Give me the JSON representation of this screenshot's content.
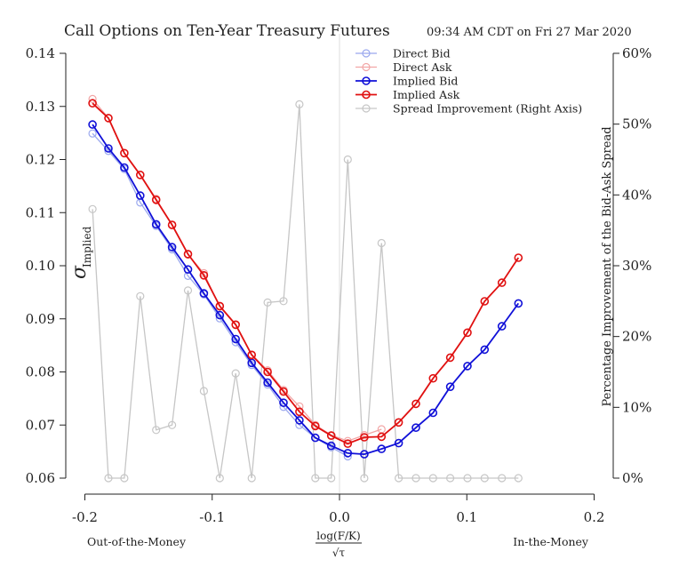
{
  "chart_data": {
    "type": "line",
    "title": "Call Options on Ten-Year Treasury Futures",
    "timestamp": "09:34 AM CDT on Fri 27 Mar 2020",
    "ylabel": {
      "symbol": "σ",
      "subscript": "Implied"
    },
    "y2label": "Percentage Improvement of the Bid-Ask Spread",
    "xlabel": {
      "numerator": "log(F/K)",
      "denominator": "√τ"
    },
    "xcaption_left": "Out-of-the-Money",
    "xcaption_right": "In-the-Money",
    "xlim": [
      -0.215,
      0.215
    ],
    "ylim": [
      0.06,
      0.14
    ],
    "y2lim": [
      0,
      60
    ],
    "xticks": [
      -0.2,
      -0.1,
      0.0,
      0.1,
      0.2
    ],
    "xtick_labels": [
      "-0.2",
      "-0.1",
      "0.0",
      "0.1",
      "0.2"
    ],
    "yticks": [
      0.06,
      0.07,
      0.08,
      0.09,
      0.1,
      0.11,
      0.12,
      0.13,
      0.14
    ],
    "ytick_labels": [
      "0.06",
      "0.07",
      "0.08",
      "0.09",
      "0.10",
      "0.11",
      "0.12",
      "0.13",
      "0.14"
    ],
    "y2ticks": [
      0,
      10,
      20,
      30,
      40,
      50,
      60
    ],
    "y2tick_labels": [
      "0%",
      "10%",
      "20%",
      "30%",
      "40%",
      "50%",
      "60%"
    ],
    "legend_position": "top-right",
    "grid": false,
    "vline_x": 0.0,
    "series": [
      {
        "name": "Direct Bid",
        "color": "#9aa8ee",
        "axis": "left",
        "x": [
          -0.194,
          -0.1815,
          -0.169,
          -0.1565,
          -0.144,
          -0.1315,
          -0.119,
          -0.1065,
          -0.094,
          -0.0815,
          -0.069,
          -0.0565,
          -0.044,
          -0.0315,
          -0.019,
          -0.0065,
          0.0065
        ],
        "y": [
          0.1249,
          0.1216,
          0.1182,
          0.1119,
          0.1075,
          0.1031,
          0.0981,
          0.0946,
          0.0901,
          0.0856,
          0.0813,
          0.0776,
          0.0734,
          0.07,
          0.0676,
          0.0658,
          0.0641
        ]
      },
      {
        "name": "Direct Ask",
        "color": "#f2a6a6",
        "axis": "left",
        "x": [
          -0.194,
          -0.1815,
          -0.169,
          -0.1565,
          -0.144,
          -0.1315,
          -0.119,
          -0.1065,
          -0.094,
          -0.0815,
          -0.069,
          -0.0565,
          -0.044,
          -0.0315,
          -0.019,
          -0.0065,
          0.0065,
          0.0195,
          0.033
        ],
        "y": [
          0.1314,
          0.1278,
          0.1212,
          0.1171,
          0.1126,
          0.1076,
          0.1021,
          0.0986,
          0.0923,
          0.0888,
          0.0833,
          0.0803,
          0.0766,
          0.0735,
          0.07,
          0.0681,
          0.067,
          0.0681,
          0.0692
        ]
      },
      {
        "name": "Implied Bid",
        "color": "#1010d8",
        "axis": "left",
        "x": [
          -0.194,
          -0.1815,
          -0.169,
          -0.1565,
          -0.144,
          -0.1315,
          -0.119,
          -0.1065,
          -0.094,
          -0.0815,
          -0.069,
          -0.0565,
          -0.044,
          -0.0315,
          -0.019,
          -0.0065,
          0.0065,
          0.0195,
          0.033,
          0.0465,
          0.06,
          0.0735,
          0.087,
          0.1005,
          0.114,
          0.1275,
          0.1405
        ],
        "y": [
          0.1266,
          0.1221,
          0.1185,
          0.1132,
          0.1078,
          0.1035,
          0.0993,
          0.0948,
          0.0907,
          0.0862,
          0.0817,
          0.078,
          0.0742,
          0.0709,
          0.0676,
          0.0661,
          0.0647,
          0.0645,
          0.0655,
          0.0666,
          0.0695,
          0.0723,
          0.0772,
          0.0811,
          0.0842,
          0.0886,
          0.0929
        ]
      },
      {
        "name": "Implied Ask",
        "color": "#e01010",
        "axis": "left",
        "x": [
          -0.194,
          -0.1815,
          -0.169,
          -0.1565,
          -0.144,
          -0.1315,
          -0.119,
          -0.1065,
          -0.094,
          -0.0815,
          -0.069,
          -0.0565,
          -0.044,
          -0.0315,
          -0.019,
          -0.0065,
          0.0065,
          0.0195,
          0.033,
          0.0465,
          0.06,
          0.0735,
          0.087,
          0.1005,
          0.114,
          0.1275,
          0.1405
        ],
        "y": [
          0.1306,
          0.1278,
          0.1212,
          0.1171,
          0.1124,
          0.1077,
          0.1022,
          0.0982,
          0.0924,
          0.0889,
          0.0832,
          0.08,
          0.0763,
          0.0725,
          0.0698,
          0.068,
          0.0665,
          0.0677,
          0.0678,
          0.0705,
          0.074,
          0.0788,
          0.0827,
          0.0874,
          0.0933,
          0.0968,
          0.1015
        ]
      },
      {
        "name": "Spread Improvement (Right Axis)",
        "color": "#c6c6c6",
        "axis": "right",
        "x": [
          -0.194,
          -0.1815,
          -0.169,
          -0.1565,
          -0.144,
          -0.1315,
          -0.119,
          -0.1065,
          -0.094,
          -0.0815,
          -0.069,
          -0.0565,
          -0.044,
          -0.0315,
          -0.019,
          -0.0065,
          0.0065,
          0.0195,
          0.033,
          0.0465,
          0.06,
          0.0735,
          0.087,
          0.1005,
          0.114,
          0.1275,
          0.1405
        ],
        "y": [
          38.0,
          0,
          0,
          25.7,
          6.8,
          7.5,
          26.5,
          12.3,
          0,
          14.8,
          0,
          24.8,
          25.0,
          52.8,
          0,
          0,
          45.0,
          0,
          33.2,
          0,
          0,
          0,
          0,
          0,
          0,
          0,
          0
        ]
      }
    ]
  }
}
